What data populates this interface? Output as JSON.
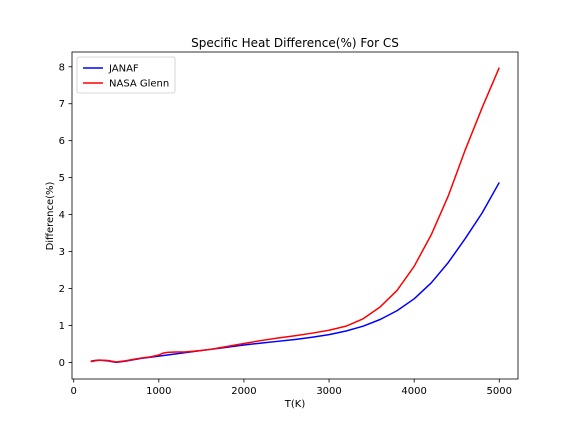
{
  "chart_data": {
    "type": "line",
    "title": "Specific Heat Difference(%) For CS",
    "xlabel": "T(K)",
    "ylabel": "Difference(%)",
    "xlim": [
      -20,
      5220
    ],
    "ylim": [
      -0.45,
      8.4
    ],
    "xticks": [
      0,
      1000,
      2000,
      3000,
      4000,
      5000
    ],
    "yticks": [
      0,
      1,
      2,
      3,
      4,
      5,
      6,
      7,
      8
    ],
    "grid": false,
    "legend_position": "upper-left",
    "series": [
      {
        "name": "JANAF",
        "color": "#0000ff",
        "x": [
          200,
          250,
          300,
          400,
          500,
          600,
          700,
          800,
          900,
          1000,
          1100,
          1200,
          1300,
          1400,
          1500,
          1600,
          1700,
          1800,
          1900,
          2000,
          2200,
          2400,
          2600,
          2800,
          3000,
          3200,
          3400,
          3600,
          3800,
          4000,
          4200,
          4400,
          4600,
          4800,
          5000
        ],
        "y": [
          0.03,
          0.05,
          0.06,
          0.04,
          0.0,
          0.03,
          0.07,
          0.11,
          0.14,
          0.17,
          0.2,
          0.23,
          0.26,
          0.29,
          0.32,
          0.35,
          0.38,
          0.41,
          0.44,
          0.47,
          0.52,
          0.57,
          0.62,
          0.68,
          0.75,
          0.85,
          0.98,
          1.16,
          1.4,
          1.72,
          2.15,
          2.7,
          3.35,
          4.05,
          4.87
        ]
      },
      {
        "name": "NASA Glenn",
        "color": "#ff0000",
        "x": [
          200,
          250,
          300,
          400,
          500,
          600,
          700,
          800,
          900,
          1000,
          1050,
          1100,
          1200,
          1300,
          1400,
          1500,
          1600,
          1700,
          1800,
          1900,
          2000,
          2200,
          2400,
          2600,
          2800,
          3000,
          3200,
          3400,
          3600,
          3800,
          4000,
          4200,
          4400,
          4600,
          4800,
          5000
        ],
        "y": [
          0.02,
          0.04,
          0.06,
          0.05,
          0.01,
          0.04,
          0.08,
          0.12,
          0.15,
          0.2,
          0.25,
          0.27,
          0.28,
          0.28,
          0.3,
          0.32,
          0.35,
          0.39,
          0.43,
          0.47,
          0.51,
          0.59,
          0.66,
          0.72,
          0.79,
          0.87,
          0.98,
          1.18,
          1.5,
          1.95,
          2.6,
          3.45,
          4.5,
          5.75,
          6.9,
          7.98
        ]
      }
    ]
  }
}
